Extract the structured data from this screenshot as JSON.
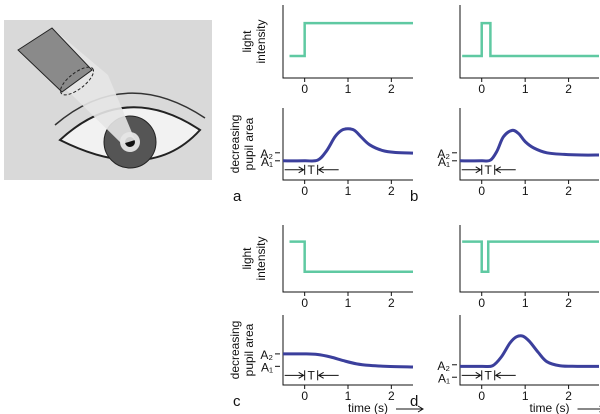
{
  "chart_data": [
    {
      "type": "line",
      "ylabel": [
        "light",
        "intensity"
      ],
      "color": "#5fc9a2",
      "x": [
        -0.35,
        0,
        0,
        2.5
      ],
      "values": [
        0,
        0,
        1,
        1
      ],
      "xlim": [
        -0.5,
        2.5
      ],
      "xticks": [
        0,
        1,
        2
      ],
      "ylim": [
        -0.67,
        1.55
      ]
    },
    {
      "type": "line",
      "ylabel": [
        "decreasing",
        "pupil area"
      ],
      "panel": "a",
      "annotation": "T",
      "color": "#3b3f9c",
      "smooth": true,
      "x": [
        -0.5,
        0,
        0.3,
        0.5,
        0.7,
        0.85,
        1.0,
        1.15,
        1.3,
        1.5,
        1.8,
        2.1,
        2.5
      ],
      "values": [
        0,
        0,
        0.02,
        0.3,
        0.75,
        0.95,
        1,
        0.95,
        0.75,
        0.5,
        0.32,
        0.26,
        0.24
      ],
      "xlim": [
        -0.5,
        2.5
      ],
      "xticks": [
        0,
        1,
        2
      ],
      "ylim": [
        -0.6,
        1.65
      ],
      "yticks": [
        {
          "value": 0.25,
          "label": "A₂"
        },
        {
          "value": 0,
          "label": "A₁"
        }
      ]
    },
    {
      "type": "line",
      "color": "#5fc9a2",
      "x": [
        -0.45,
        0,
        0,
        0.2,
        0.2,
        2.7
      ],
      "values": [
        0,
        0,
        1,
        1,
        0,
        0
      ],
      "xlim": [
        -0.5,
        2.7
      ],
      "xticks": [
        0,
        1,
        2
      ],
      "ylim": [
        -0.67,
        1.55
      ]
    },
    {
      "type": "line",
      "panel": "b",
      "annotation": "T",
      "color": "#3b3f9c",
      "smooth": true,
      "x": [
        -0.5,
        0,
        0.2,
        0.35,
        0.5,
        0.7,
        0.85,
        1.0,
        1.2,
        1.5,
        1.9,
        2.3,
        2.7
      ],
      "values": [
        0,
        0,
        0.02,
        0.3,
        0.75,
        0.95,
        0.85,
        0.6,
        0.4,
        0.25,
        0.2,
        0.18,
        0.18
      ],
      "xlim": [
        -0.5,
        2.7
      ],
      "xticks": [
        0,
        1,
        2
      ],
      "ylim": [
        -0.6,
        1.65
      ],
      "yticks": [
        {
          "value": 0.25,
          "label": "A₂"
        },
        {
          "value": 0,
          "label": "A₁"
        }
      ]
    },
    {
      "type": "line",
      "ylabel": [
        "light",
        "intensity"
      ],
      "color": "#5fc9a2",
      "x": [
        -0.35,
        0,
        0,
        2.5
      ],
      "values": [
        1,
        1,
        0,
        0
      ],
      "xlim": [
        -0.5,
        2.5
      ],
      "xticks": [
        0,
        1,
        2
      ],
      "ylim": [
        -0.67,
        1.55
      ]
    },
    {
      "type": "line",
      "ylabel": [
        "decreasing",
        "pupil area"
      ],
      "panel": "c",
      "annotation": "T",
      "xlabel": "time (s)",
      "color": "#3b3f9c",
      "smooth": true,
      "x": [
        -0.5,
        0,
        0.3,
        0.6,
        0.9,
        1.2,
        1.5,
        1.9,
        2.5
      ],
      "values": [
        0.4,
        0.4,
        0.38,
        0.3,
        0.18,
        0.08,
        0.03,
        0,
        -0.02
      ],
      "xlim": [
        -0.5,
        2.5
      ],
      "xticks": [
        0,
        1,
        2
      ],
      "ylim": [
        -0.6,
        1.65
      ],
      "yticks": [
        {
          "value": 0.4,
          "label": "A₂"
        },
        {
          "value": 0,
          "label": "A₁"
        }
      ]
    },
    {
      "type": "line",
      "color": "#5fc9a2",
      "x": [
        -0.45,
        0,
        0,
        0.15,
        0.15,
        2.7
      ],
      "values": [
        1,
        1,
        0,
        0,
        1,
        1
      ],
      "xlim": [
        -0.5,
        2.7
      ],
      "xticks": [
        0,
        1,
        2
      ],
      "ylim": [
        -0.67,
        1.55
      ]
    },
    {
      "type": "line",
      "panel": "d",
      "annotation": "T",
      "xlabel": "time (s)",
      "color": "#3b3f9c",
      "smooth": true,
      "x": [
        -0.5,
        0,
        0.25,
        0.45,
        0.65,
        0.8,
        0.95,
        1.1,
        1.3,
        1.5,
        1.8,
        2.2,
        2.7
      ],
      "values": [
        0,
        0,
        0.02,
        0.3,
        0.75,
        0.95,
        0.97,
        0.8,
        0.45,
        0.15,
        0.02,
        0,
        0
      ],
      "xlim": [
        -0.5,
        2.7
      ],
      "xticks": [
        0,
        1,
        2
      ],
      "ylim": [
        -0.6,
        1.65
      ],
      "yticks": [
        {
          "value": 0.05,
          "label": "A₂"
        },
        {
          "value": -0.35,
          "label": "A₁"
        }
      ]
    }
  ]
}
